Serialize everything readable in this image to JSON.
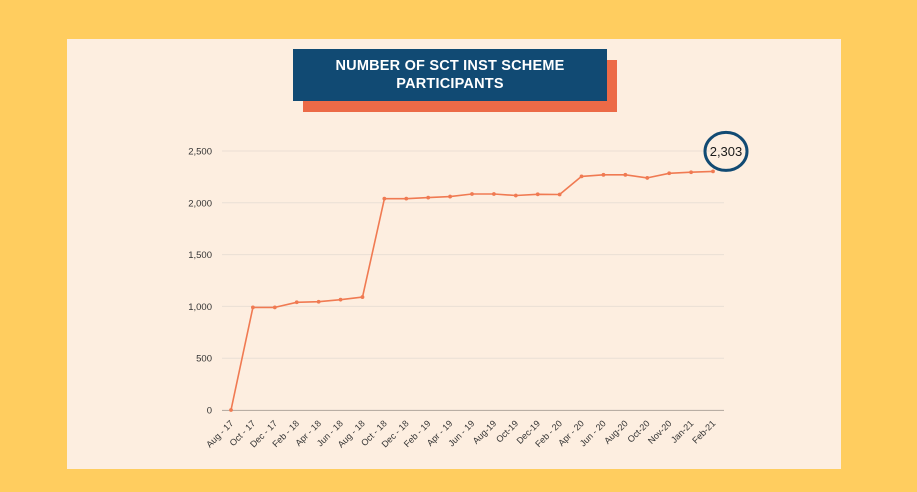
{
  "colors": {
    "background": "#ffcd5f",
    "panel": "#fdeee0",
    "title_box": "#114a73",
    "title_shadow": "#ec6a47",
    "line": "#f07a52",
    "gridline": "#eadfd5",
    "axis_text": "#333333",
    "highlight_ring": "#114a73"
  },
  "chart_data": {
    "type": "line",
    "title": "NUMBER OF SCT INST SCHEME\nPARTICIPANTS",
    "xlabel": "",
    "ylabel": "",
    "ylim": [
      0,
      2500
    ],
    "yticks": [
      0,
      500,
      1000,
      1500,
      2000,
      2500
    ],
    "ytick_labels": [
      "0",
      "500",
      "1,000",
      "1,500",
      "2,000",
      "2,500"
    ],
    "grid": true,
    "x_labels": [
      "Aug - 17",
      "Oct - 17",
      "Dec - 17",
      "Feb - 18",
      "Apr - 18",
      "Jun - 18",
      "Aug - 18",
      "Oct - 18",
      "Dec - 18",
      "Feb - 19",
      "Apr - 19",
      "Jun - 19",
      "Aug-19",
      "Oct-19",
      "Dec-19",
      "Feb - 20",
      "Apr - 20",
      "Jun - 20",
      "Aug-20",
      "Oct-20",
      "Nov-20",
      "Jan-21",
      "Feb-21"
    ],
    "values": [
      0,
      990,
      990,
      1040,
      1045,
      1065,
      1090,
      2040,
      2040,
      2050,
      2060,
      2085,
      2085,
      2070,
      2082,
      2080,
      2255,
      2270,
      2270,
      2240,
      2285,
      2295,
      2303
    ],
    "annotation": {
      "index": 22,
      "text": "2,303"
    }
  }
}
